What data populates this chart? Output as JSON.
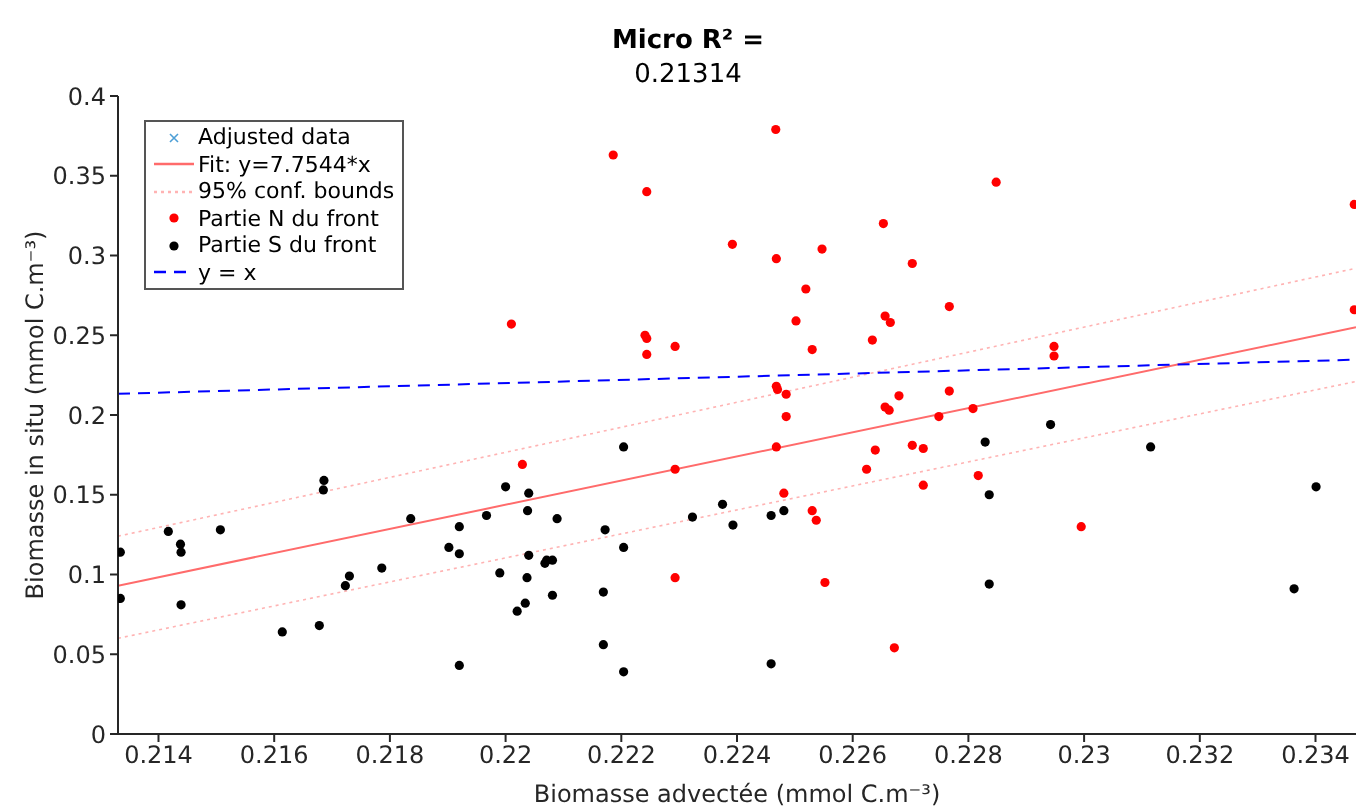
{
  "chart_data": {
    "type": "scatter",
    "title": "Micro R² =",
    "subtitle": "0.21314",
    "xlabel": "Biomasse advectée (mmol C.m⁻³)",
    "ylabel": "Biomasse in situ (mmol C.m⁻³)",
    "xlim": [
      0.2133,
      0.2347
    ],
    "xticks": [
      0.214,
      0.216,
      0.218,
      0.22,
      0.222,
      0.224,
      0.226,
      0.228,
      0.23,
      0.232,
      0.234
    ],
    "ylim": [
      0,
      0.4
    ],
    "yticks": [
      0,
      0.05,
      0.1,
      0.15,
      0.2,
      0.25,
      0.3,
      0.35,
      0.4
    ],
    "legend": "top left",
    "series": [
      {
        "name": "Adjusted data",
        "marker": "cross",
        "color": "#4d9fd6"
      },
      {
        "name": "Fit: y=7.7544*x",
        "type": "line",
        "line_style": "solid",
        "color": "#ff6b6b",
        "x": [
          0.2133,
          0.2347
        ],
        "values": [
          0.093,
          0.255
        ]
      },
      {
        "name": "95% conf. bounds",
        "type": "line",
        "line_style": "dotted",
        "color": "#ffb3b3",
        "x": [
          0.2133,
          0.2347
        ],
        "values": [
          0.124,
          0.292
        ]
      },
      {
        "type": "line",
        "line_style": "dotted",
        "color": "#ffb3b3",
        "x": [
          0.2133,
          0.2347
        ],
        "values": [
          0.06,
          0.221
        ]
      },
      {
        "name": "Partie N du front",
        "marker": "circle",
        "color": "#ff0000",
        "x": [
          0.22467,
          0.22392,
          0.22468,
          0.22547,
          0.22653,
          0.22848,
          0.22703,
          0.22519,
          0.22502,
          0.22656,
          0.22665,
          0.22634,
          0.2253,
          0.22767,
          0.22948,
          0.22948,
          0.23467,
          0.23467,
          0.22468,
          0.2247,
          0.22485,
          0.22767,
          0.2268,
          0.22186,
          0.22244,
          0.2201,
          0.22241,
          0.22244,
          0.22244,
          0.22293,
          0.22029,
          0.22293,
          0.22293,
          0.22485,
          0.22656,
          0.22663,
          0.22808,
          0.22749,
          0.22468,
          0.22639,
          0.22703,
          0.22722,
          0.22624,
          0.22817,
          0.22722,
          0.22481,
          0.2253,
          0.22537,
          0.22995,
          0.22552,
          0.22672
        ],
        "values": [
          0.379,
          0.307,
          0.298,
          0.304,
          0.32,
          0.346,
          0.295,
          0.279,
          0.259,
          0.262,
          0.258,
          0.247,
          0.241,
          0.268,
          0.243,
          0.237,
          0.332,
          0.266,
          0.218,
          0.216,
          0.213,
          0.215,
          0.212,
          0.363,
          0.34,
          0.257,
          0.25,
          0.248,
          0.238,
          0.243,
          0.169,
          0.166,
          0.098,
          0.199,
          0.205,
          0.203,
          0.204,
          0.199,
          0.18,
          0.178,
          0.181,
          0.179,
          0.166,
          0.162,
          0.156,
          0.151,
          0.14,
          0.134,
          0.13,
          0.095,
          0.054
        ]
      },
      {
        "name": "Partie S du front",
        "marker": "circle",
        "color": "#000000",
        "x": [
          0.21334,
          0.21334,
          0.21417,
          0.21438,
          0.21439,
          0.21439,
          0.21507,
          0.21614,
          0.21678,
          0.21686,
          0.21685,
          0.21723,
          0.2173,
          0.21786,
          0.21836,
          0.21902,
          0.2192,
          0.2192,
          0.2192,
          0.21967,
          0.2199,
          0.22,
          0.2202,
          0.22034,
          0.22037,
          0.2204,
          0.22038,
          0.2204,
          0.22068,
          0.22071,
          0.22081,
          0.22081,
          0.22089,
          0.22169,
          0.22172,
          0.22169,
          0.22204,
          0.22204,
          0.22204,
          0.22323,
          0.22375,
          0.22393,
          0.22459,
          0.22481,
          0.22459,
          0.22829,
          0.22836,
          0.22836,
          0.22942,
          0.23115,
          0.23363,
          0.23401
        ],
        "values": [
          0.114,
          0.085,
          0.127,
          0.119,
          0.114,
          0.081,
          0.128,
          0.064,
          0.068,
          0.159,
          0.153,
          0.093,
          0.099,
          0.104,
          0.135,
          0.117,
          0.13,
          0.113,
          0.043,
          0.137,
          0.101,
          0.155,
          0.077,
          0.082,
          0.098,
          0.112,
          0.14,
          0.151,
          0.107,
          0.109,
          0.109,
          0.087,
          0.135,
          0.089,
          0.128,
          0.056,
          0.18,
          0.117,
          0.039,
          0.136,
          0.144,
          0.131,
          0.137,
          0.14,
          0.044,
          0.183,
          0.15,
          0.094,
          0.194,
          0.18,
          0.091,
          0.155
        ]
      },
      {
        "name": "y = x",
        "type": "line",
        "line_style": "dashed",
        "color": "#0000ff",
        "x": [
          0.2133,
          0.2347
        ],
        "values": [
          0.2133,
          0.2347
        ]
      }
    ]
  }
}
